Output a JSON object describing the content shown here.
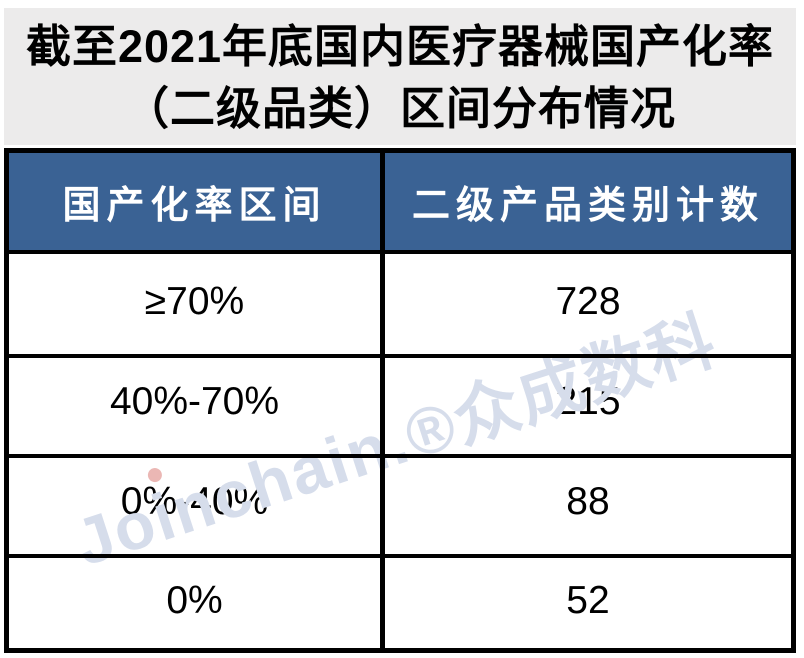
{
  "title": {
    "line1": "截至2021年底国内医疗器械国产化率",
    "line2": "（二级品类）区间分布情况"
  },
  "table": {
    "headers": [
      "国产化率区间",
      "二级产品类别计数"
    ],
    "rows": [
      {
        "range": "≥70%",
        "count": "728"
      },
      {
        "range": "40%-70%",
        "count": "215"
      },
      {
        "range": "0%-40%",
        "count": "88"
      },
      {
        "range": "0%",
        "count": "52"
      }
    ]
  },
  "watermark": {
    "text": "Joinchain.®众成数科"
  },
  "colors": {
    "header_bg": "#3A6294",
    "header_text": "#FFFFFF",
    "title_bg": "#ECEBEB",
    "border": "#000000",
    "watermark_text": "#D6DDEB",
    "watermark_dot": "#EBB7B4"
  },
  "chart_data": {
    "type": "table",
    "title": "截至2021年底国内医疗器械国产化率（二级品类）区间分布情况",
    "columns": [
      "国产化率区间",
      "二级产品类别计数"
    ],
    "rows": [
      [
        "≥70%",
        728
      ],
      [
        "40%-70%",
        215
      ],
      [
        "0%-40%",
        88
      ],
      [
        "0%",
        52
      ]
    ]
  }
}
